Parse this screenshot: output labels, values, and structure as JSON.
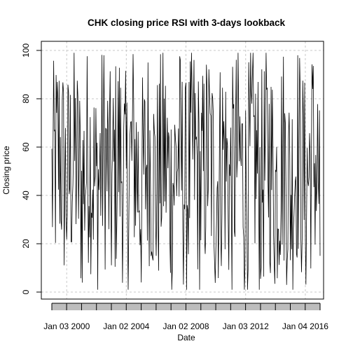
{
  "chart_data": {
    "type": "line",
    "title": "CHK closing price RSI with 3-days lookback",
    "xlabel": "Date",
    "ylabel": "Closing price",
    "x_range": [
      "1999-01-04",
      "2016-12-30"
    ],
    "ylim": [
      0,
      100
    ],
    "y_ticks": [
      0,
      20,
      40,
      60,
      80,
      100
    ],
    "x_ticks": [
      {
        "date": "2000-01-03",
        "label": "Jan 03 2000"
      },
      {
        "date": "2004-01-02",
        "label": "Jan 02 2004"
      },
      {
        "date": "2008-01-02",
        "label": "Jan 02 2008"
      },
      {
        "date": "2012-01-03",
        "label": "Jan 03 2012"
      },
      {
        "date": "2016-01-04",
        "label": "Jan 04 2016"
      }
    ],
    "grid": true,
    "series": [
      {
        "color": "#000000",
        "note_values": "daily RSI oscillating between about 1 and 99",
        "x": [
          "1999-01-04",
          "1999-07-01",
          "2000-01-03",
          "2000-07-03",
          "2001-01-02",
          "2001-07-02",
          "2002-01-02",
          "2002-07-01",
          "2003-01-02",
          "2003-07-01",
          "2004-01-02",
          "2004-07-01",
          "2005-01-03",
          "2005-07-01",
          "2006-01-03",
          "2006-07-03",
          "2007-01-03",
          "2007-07-02",
          "2008-01-02",
          "2008-07-01",
          "2009-01-02",
          "2009-07-01",
          "2010-01-04",
          "2010-07-01",
          "2011-01-03",
          "2011-07-01",
          "2012-01-03",
          "2012-07-02",
          "2013-01-02",
          "2013-07-01",
          "2014-01-02",
          "2014-07-01",
          "2015-01-02",
          "2015-07-01",
          "2016-01-04",
          "2016-07-01",
          "2016-12-30"
        ],
        "y": [
          22,
          96,
          15,
          94,
          8,
          97,
          6,
          95,
          4,
          98,
          12,
          99,
          3,
          97,
          10,
          96,
          7,
          95,
          5,
          98,
          9,
          96,
          11,
          95,
          8,
          97,
          6,
          99,
          10,
          96,
          9,
          95,
          2,
          98,
          4,
          97,
          15
        ]
      }
    ]
  }
}
